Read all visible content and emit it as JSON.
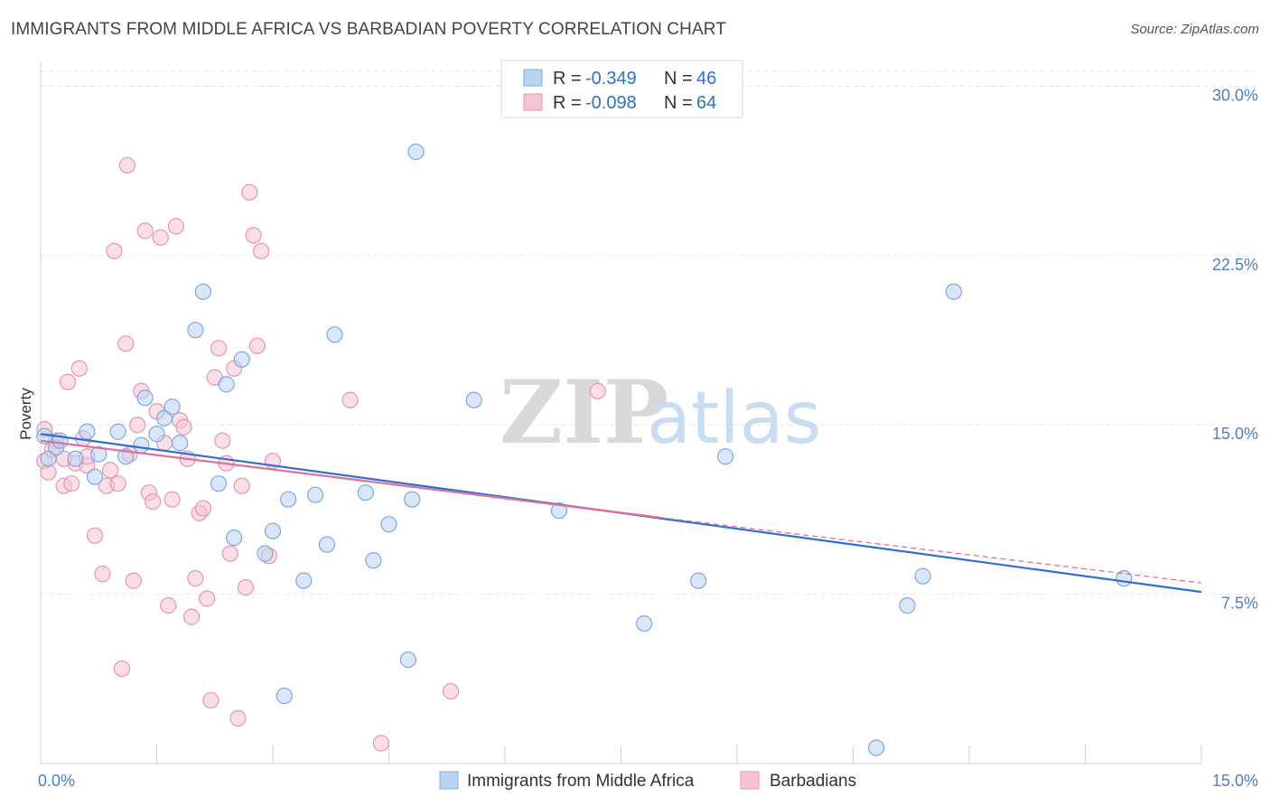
{
  "title": "IMMIGRANTS FROM MIDDLE AFRICA VS BARBADIAN POVERTY CORRELATION CHART",
  "source": "Source: ZipAtlas.com",
  "watermark": {
    "zip": "ZIP",
    "atlas": "atlas"
  },
  "colors": {
    "blue_fill": "#b9d3f3",
    "blue_stroke": "#7ea8e3",
    "blue_line": "#2f6fd0",
    "pink_fill": "#f6c4d3",
    "pink_stroke": "#e994b0",
    "pink_line": "#e0709a",
    "grid": "#e6e6e6",
    "tick_label": "#4a7fd0"
  },
  "legend": {
    "rows": [
      {
        "r_label": "R =",
        "r_value": "-0.349",
        "n_label": "N =",
        "n_value": "46"
      },
      {
        "r_label": "R =",
        "r_value": "-0.098",
        "n_label": "N =",
        "n_value": "64"
      }
    ]
  },
  "chart_data": {
    "type": "scatter",
    "xlabel": "",
    "ylabel": "Poverty",
    "xlim": [
      0,
      15
    ],
    "ylim": [
      0,
      30.9
    ],
    "x_ticks": [
      "0.0%",
      "15.0%"
    ],
    "y_ticks": [
      {
        "value": 7.5,
        "label": "7.5%"
      },
      {
        "value": 15.0,
        "label": "15.0%"
      },
      {
        "value": 22.5,
        "label": "22.5%"
      },
      {
        "value": 30.0,
        "label": "30.0%"
      }
    ],
    "grid": true,
    "legend_position": "top-center",
    "series": [
      {
        "name": "Immigrants from Middle Africa",
        "color": "#7ea8e3",
        "trend": {
          "x": [
            0,
            15
          ],
          "y": [
            14.6,
            7.6
          ],
          "style": "solid"
        },
        "points": [
          [
            0.1,
            13.5
          ],
          [
            0.2,
            14.0
          ],
          [
            0.25,
            14.3
          ],
          [
            0.45,
            13.5
          ],
          [
            0.6,
            14.7
          ],
          [
            0.7,
            12.7
          ],
          [
            0.75,
            13.7
          ],
          [
            1.0,
            14.7
          ],
          [
            1.1,
            13.6
          ],
          [
            1.3,
            14.1
          ],
          [
            1.35,
            16.2
          ],
          [
            1.5,
            14.6
          ],
          [
            1.6,
            15.3
          ],
          [
            1.7,
            15.8
          ],
          [
            1.8,
            14.2
          ],
          [
            2.0,
            19.2
          ],
          [
            2.1,
            20.9
          ],
          [
            2.4,
            16.8
          ],
          [
            2.6,
            17.9
          ],
          [
            2.3,
            12.4
          ],
          [
            2.5,
            10.0
          ],
          [
            2.9,
            9.3
          ],
          [
            3.0,
            10.3
          ],
          [
            3.2,
            11.7
          ],
          [
            3.4,
            8.1
          ],
          [
            3.55,
            11.9
          ],
          [
            3.7,
            9.7
          ],
          [
            3.8,
            19.0
          ],
          [
            4.2,
            12.0
          ],
          [
            4.3,
            9.0
          ],
          [
            4.5,
            10.6
          ],
          [
            4.75,
            4.6
          ],
          [
            4.8,
            11.7
          ],
          [
            4.85,
            27.1
          ],
          [
            5.6,
            16.1
          ],
          [
            6.7,
            11.2
          ],
          [
            7.8,
            6.2
          ],
          [
            8.5,
            8.1
          ],
          [
            8.85,
            13.6
          ],
          [
            10.8,
            0.7
          ],
          [
            11.2,
            7.0
          ],
          [
            11.4,
            8.3
          ],
          [
            11.8,
            20.9
          ],
          [
            14.0,
            8.2
          ],
          [
            3.15,
            3.0
          ],
          [
            0.05,
            14.5
          ]
        ]
      },
      {
        "name": "Barbadians",
        "color": "#e994b0",
        "trend": {
          "x": [
            0,
            8.0
          ],
          "y": [
            14.3,
            10.9
          ],
          "style": "solid",
          "extension": {
            "x": [
              8.0,
              15
            ],
            "y": [
              10.9,
              8.0
            ],
            "style": "dashed"
          }
        },
        "points": [
          [
            0.05,
            14.8
          ],
          [
            0.05,
            13.4
          ],
          [
            0.1,
            12.9
          ],
          [
            0.15,
            13.9
          ],
          [
            0.2,
            14.3
          ],
          [
            0.3,
            12.3
          ],
          [
            0.35,
            16.9
          ],
          [
            0.4,
            12.4
          ],
          [
            0.45,
            13.3
          ],
          [
            0.5,
            17.5
          ],
          [
            0.55,
            14.4
          ],
          [
            0.6,
            13.2
          ],
          [
            0.7,
            10.1
          ],
          [
            0.8,
            8.4
          ],
          [
            0.85,
            12.3
          ],
          [
            0.9,
            13.0
          ],
          [
            0.95,
            22.7
          ],
          [
            1.0,
            12.4
          ],
          [
            1.05,
            4.2
          ],
          [
            1.1,
            18.6
          ],
          [
            1.15,
            13.7
          ],
          [
            1.2,
            8.1
          ],
          [
            1.25,
            15.0
          ],
          [
            1.3,
            16.5
          ],
          [
            1.35,
            23.6
          ],
          [
            1.4,
            12.0
          ],
          [
            1.45,
            11.6
          ],
          [
            1.5,
            15.6
          ],
          [
            1.55,
            23.3
          ],
          [
            1.6,
            14.2
          ],
          [
            1.65,
            7.0
          ],
          [
            1.7,
            11.7
          ],
          [
            1.75,
            23.8
          ],
          [
            1.8,
            15.2
          ],
          [
            1.85,
            14.9
          ],
          [
            1.9,
            13.5
          ],
          [
            1.95,
            6.5
          ],
          [
            2.0,
            8.2
          ],
          [
            2.05,
            11.1
          ],
          [
            2.1,
            11.3
          ],
          [
            2.15,
            7.3
          ],
          [
            2.2,
            2.8
          ],
          [
            2.25,
            17.1
          ],
          [
            2.3,
            18.4
          ],
          [
            2.35,
            14.3
          ],
          [
            2.4,
            13.3
          ],
          [
            2.45,
            9.3
          ],
          [
            2.5,
            17.5
          ],
          [
            2.55,
            2.0
          ],
          [
            2.6,
            12.3
          ],
          [
            2.65,
            7.8
          ],
          [
            2.7,
            25.3
          ],
          [
            2.75,
            23.4
          ],
          [
            2.8,
            18.5
          ],
          [
            2.85,
            22.7
          ],
          [
            2.95,
            9.2
          ],
          [
            3.0,
            13.4
          ],
          [
            4.0,
            16.1
          ],
          [
            4.4,
            0.9
          ],
          [
            5.3,
            3.2
          ],
          [
            7.2,
            16.5
          ],
          [
            1.12,
            26.5
          ],
          [
            0.6,
            13.6
          ],
          [
            0.3,
            13.5
          ]
        ]
      }
    ]
  }
}
